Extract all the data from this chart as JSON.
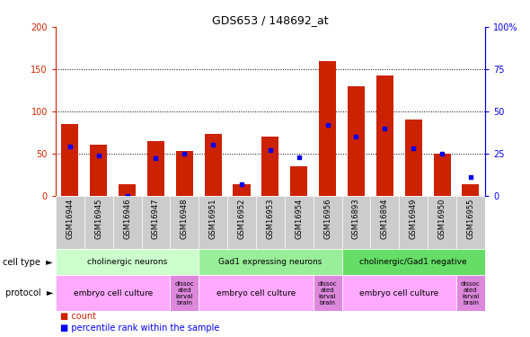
{
  "title": "GDS653 / 148692_at",
  "samples": [
    "GSM16944",
    "GSM16945",
    "GSM16946",
    "GSM16947",
    "GSM16948",
    "GSM16951",
    "GSM16952",
    "GSM16953",
    "GSM16954",
    "GSM16956",
    "GSM16893",
    "GSM16894",
    "GSM16949",
    "GSM16950",
    "GSM16955"
  ],
  "counts": [
    85,
    60,
    13,
    65,
    53,
    73,
    13,
    70,
    35,
    160,
    130,
    142,
    90,
    50,
    14
  ],
  "percentile": [
    29,
    24,
    0,
    22,
    25,
    30,
    7,
    27,
    23,
    42,
    35,
    40,
    28,
    25,
    11
  ],
  "ylim_left": [
    0,
    200
  ],
  "ylim_right": [
    0,
    100
  ],
  "yticks_left": [
    0,
    50,
    100,
    150,
    200
  ],
  "yticks_right": [
    0,
    25,
    50,
    75,
    100
  ],
  "bar_color": "#cc2200",
  "dot_color": "#0000ee",
  "background_chart": "#ffffff",
  "axis_color_left": "#cc2200",
  "axis_color_right": "#0000ee",
  "cell_type_groups": [
    {
      "label": "cholinergic neurons",
      "start": 0,
      "end": 5,
      "color": "#ccffcc"
    },
    {
      "label": "Gad1 expressing neurons",
      "start": 5,
      "end": 10,
      "color": "#99ee99"
    },
    {
      "label": "cholinergic/Gad1 negative",
      "start": 10,
      "end": 15,
      "color": "#66dd66"
    }
  ],
  "protocol_groups": [
    {
      "label": "embryo cell culture",
      "start": 0,
      "end": 4,
      "color": "#ffaaff"
    },
    {
      "label": "dissoc\nated\nlarval\nbrain",
      "start": 4,
      "end": 5,
      "color": "#dd88dd"
    },
    {
      "label": "embryo cell culture",
      "start": 5,
      "end": 9,
      "color": "#ffaaff"
    },
    {
      "label": "dissoc\nated\nlarval\nbrain",
      "start": 9,
      "end": 10,
      "color": "#dd88dd"
    },
    {
      "label": "embryo cell culture",
      "start": 10,
      "end": 14,
      "color": "#ffaaff"
    },
    {
      "label": "dissoc\nated\nlarval\nbrain",
      "start": 14,
      "end": 15,
      "color": "#dd88dd"
    }
  ],
  "legend_count_color": "#cc2200",
  "legend_pct_color": "#0000ee",
  "bar_width": 0.6,
  "tick_label_fontsize": 6,
  "title_fontsize": 9,
  "sample_box_color": "#cccccc"
}
